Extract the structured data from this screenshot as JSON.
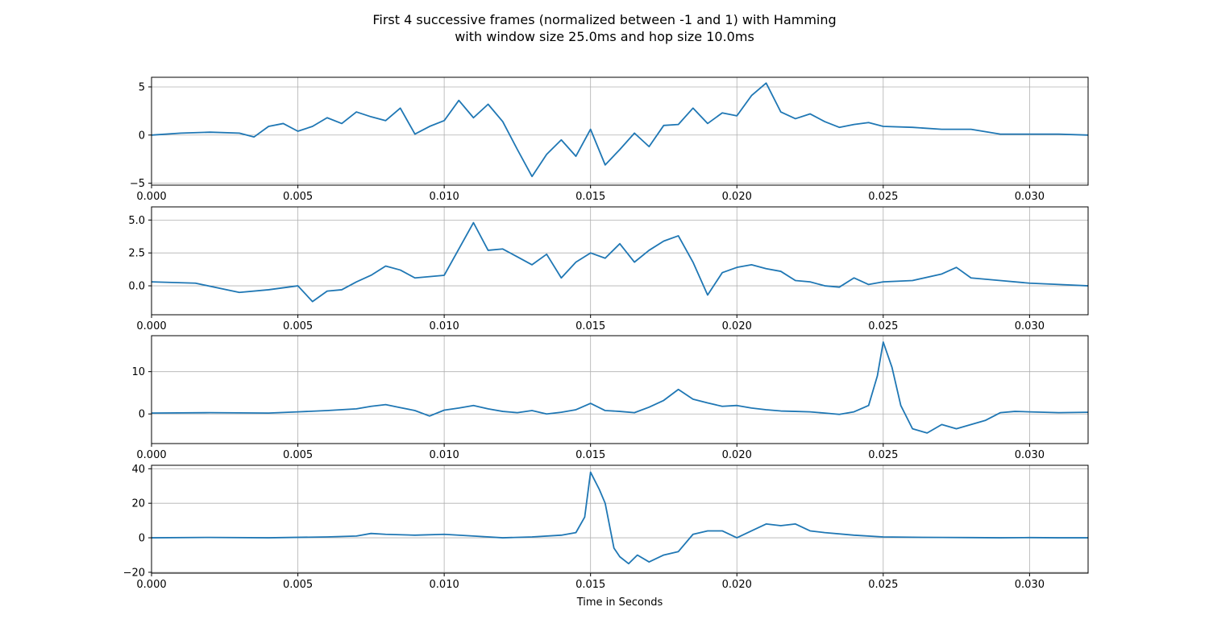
{
  "figure": {
    "title_line1": "First 4 successive frames (normalized between -1 and 1) with Hamming",
    "title_line2": "with window size 25.0ms and hop size 10.0ms",
    "series_color": "#1f77b4",
    "grid_color": "#b0b0b0"
  },
  "chart_data": [
    {
      "type": "line",
      "title": "",
      "xlabel": "",
      "ylabel": "",
      "grid": true,
      "xlim": [
        0,
        0.032
      ],
      "ylim": [
        -5.2,
        6.0
      ],
      "xticks": [
        0.0,
        0.005,
        0.01,
        0.015,
        0.02,
        0.025,
        0.03
      ],
      "xtick_labels": [
        "0.000",
        "0.005",
        "0.010",
        "0.015",
        "0.020",
        "0.025",
        "0.030"
      ],
      "yticks": [
        -5,
        0,
        5
      ],
      "ytick_labels": [
        "−5",
        "0",
        "5"
      ],
      "series": [
        {
          "x": [
            0.0,
            0.001,
            0.002,
            0.003,
            0.0035,
            0.004,
            0.0045,
            0.005,
            0.0055,
            0.006,
            0.0065,
            0.007,
            0.0075,
            0.008,
            0.0085,
            0.009,
            0.0095,
            0.01,
            0.0105,
            0.011,
            0.0115,
            0.012,
            0.0125,
            0.013,
            0.0135,
            0.014,
            0.0145,
            0.015,
            0.0155,
            0.016,
            0.0165,
            0.017,
            0.0175,
            0.018,
            0.0185,
            0.019,
            0.0195,
            0.02,
            0.0205,
            0.021,
            0.0215,
            0.022,
            0.0225,
            0.023,
            0.0235,
            0.024,
            0.0245,
            0.025,
            0.026,
            0.027,
            0.028,
            0.029,
            0.03,
            0.031,
            0.032
          ],
          "y": [
            0.0,
            0.2,
            0.3,
            0.2,
            -0.2,
            0.9,
            1.2,
            0.4,
            0.9,
            1.8,
            1.2,
            2.4,
            1.9,
            1.5,
            2.8,
            0.1,
            0.9,
            1.5,
            3.6,
            1.8,
            3.2,
            1.4,
            -1.5,
            -4.3,
            -2.0,
            -0.5,
            -2.2,
            0.6,
            -3.1,
            -1.5,
            0.2,
            -1.2,
            1.0,
            1.1,
            2.8,
            1.2,
            2.3,
            2.0,
            4.1,
            5.4,
            2.4,
            1.7,
            2.2,
            1.4,
            0.8,
            1.1,
            1.3,
            0.9,
            0.8,
            0.6,
            0.6,
            0.1,
            0.1,
            0.1,
            0.0
          ]
        }
      ]
    },
    {
      "type": "line",
      "title": "",
      "xlabel": "",
      "ylabel": "",
      "grid": true,
      "xlim": [
        0,
        0.032
      ],
      "ylim": [
        -2.2,
        6.0
      ],
      "xticks": [
        0.0,
        0.005,
        0.01,
        0.015,
        0.02,
        0.025,
        0.03
      ],
      "xtick_labels": [
        "0.000",
        "0.005",
        "0.010",
        "0.015",
        "0.020",
        "0.025",
        "0.030"
      ],
      "yticks": [
        0.0,
        2.5,
        5.0
      ],
      "ytick_labels": [
        "0.0",
        "2.5",
        "5.0"
      ],
      "series": [
        {
          "x": [
            0.0,
            0.0015,
            0.003,
            0.004,
            0.005,
            0.0055,
            0.006,
            0.0065,
            0.007,
            0.0075,
            0.008,
            0.0085,
            0.009,
            0.0095,
            0.01,
            0.0105,
            0.011,
            0.0115,
            0.012,
            0.0125,
            0.013,
            0.0135,
            0.014,
            0.0145,
            0.015,
            0.0155,
            0.016,
            0.0165,
            0.017,
            0.0175,
            0.018,
            0.0185,
            0.019,
            0.0195,
            0.02,
            0.0205,
            0.021,
            0.0215,
            0.022,
            0.0225,
            0.023,
            0.0235,
            0.024,
            0.0245,
            0.025,
            0.026,
            0.027,
            0.0275,
            0.028,
            0.029,
            0.03,
            0.031,
            0.032
          ],
          "y": [
            0.3,
            0.2,
            -0.5,
            -0.3,
            0.0,
            -1.2,
            -0.4,
            -0.3,
            0.3,
            0.8,
            1.5,
            1.2,
            0.6,
            0.7,
            0.8,
            2.8,
            4.8,
            2.7,
            2.8,
            2.2,
            1.6,
            2.4,
            0.6,
            1.8,
            2.5,
            2.1,
            3.2,
            1.8,
            2.7,
            3.4,
            3.8,
            1.8,
            -0.7,
            1.0,
            1.4,
            1.6,
            1.3,
            1.1,
            0.4,
            0.3,
            0.0,
            -0.1,
            0.6,
            0.1,
            0.3,
            0.4,
            0.9,
            1.4,
            0.6,
            0.4,
            0.2,
            0.1,
            0.0
          ]
        }
      ]
    },
    {
      "type": "line",
      "title": "",
      "xlabel": "",
      "ylabel": "",
      "grid": true,
      "xlim": [
        0,
        0.032
      ],
      "ylim": [
        -7.0,
        18.5
      ],
      "xticks": [
        0.0,
        0.005,
        0.01,
        0.015,
        0.02,
        0.025,
        0.03
      ],
      "xtick_labels": [
        "0.000",
        "0.005",
        "0.010",
        "0.015",
        "0.020",
        "0.025",
        "0.030"
      ],
      "yticks": [
        0,
        10
      ],
      "ytick_labels": [
        "0",
        "10"
      ],
      "series": [
        {
          "x": [
            0.0,
            0.002,
            0.004,
            0.005,
            0.006,
            0.007,
            0.0075,
            0.008,
            0.0085,
            0.009,
            0.0095,
            0.01,
            0.0105,
            0.011,
            0.0115,
            0.012,
            0.0125,
            0.013,
            0.0135,
            0.014,
            0.0145,
            0.015,
            0.0155,
            0.016,
            0.0165,
            0.017,
            0.0175,
            0.018,
            0.0185,
            0.019,
            0.0195,
            0.02,
            0.0205,
            0.021,
            0.0215,
            0.022,
            0.0225,
            0.023,
            0.0235,
            0.024,
            0.0245,
            0.0248,
            0.025,
            0.0253,
            0.0256,
            0.026,
            0.0265,
            0.027,
            0.0275,
            0.028,
            0.0285,
            0.029,
            0.0295,
            0.03,
            0.031,
            0.032
          ],
          "y": [
            0.2,
            0.3,
            0.2,
            0.5,
            0.8,
            1.2,
            1.8,
            2.2,
            1.5,
            0.8,
            -0.5,
            0.9,
            1.4,
            2.0,
            1.2,
            0.6,
            0.3,
            0.8,
            0.0,
            0.4,
            1.0,
            2.5,
            0.8,
            0.6,
            0.3,
            1.6,
            3.2,
            5.8,
            3.5,
            2.6,
            1.8,
            2.0,
            1.4,
            1.0,
            0.7,
            0.6,
            0.5,
            0.2,
            -0.1,
            0.5,
            2.0,
            9.0,
            17.0,
            11.0,
            2.0,
            -3.5,
            -4.5,
            -2.5,
            -3.5,
            -2.5,
            -1.5,
            0.3,
            0.6,
            0.5,
            0.3,
            0.4
          ]
        }
      ]
    },
    {
      "type": "line",
      "title": "",
      "xlabel": "Time in Seconds",
      "ylabel": "",
      "grid": true,
      "xlim": [
        0,
        0.032
      ],
      "ylim": [
        -20.5,
        42.0
      ],
      "xticks": [
        0.0,
        0.005,
        0.01,
        0.015,
        0.02,
        0.025,
        0.03
      ],
      "xtick_labels": [
        "0.000",
        "0.005",
        "0.010",
        "0.015",
        "0.020",
        "0.025",
        "0.030"
      ],
      "yticks": [
        -20,
        0,
        20,
        40
      ],
      "ytick_labels": [
        "−20",
        "0",
        "20",
        "40"
      ],
      "series": [
        {
          "x": [
            0.0,
            0.002,
            0.004,
            0.006,
            0.007,
            0.0075,
            0.008,
            0.009,
            0.01,
            0.011,
            0.012,
            0.013,
            0.014,
            0.0145,
            0.0148,
            0.015,
            0.0153,
            0.0155,
            0.0158,
            0.016,
            0.0163,
            0.0166,
            0.017,
            0.0175,
            0.018,
            0.0185,
            0.019,
            0.0195,
            0.02,
            0.0205,
            0.021,
            0.0215,
            0.022,
            0.0225,
            0.023,
            0.024,
            0.025,
            0.026,
            0.027,
            0.028,
            0.029,
            0.03,
            0.031,
            0.032
          ],
          "y": [
            0.0,
            0.2,
            0.0,
            0.5,
            1.0,
            2.5,
            2.0,
            1.5,
            2.0,
            1.0,
            0.0,
            0.5,
            1.5,
            3.0,
            12.0,
            38.0,
            28.0,
            20.0,
            -6.0,
            -11.0,
            -15.0,
            -10.0,
            -14.0,
            -10.0,
            -8.0,
            2.0,
            4.0,
            4.0,
            0.0,
            4.0,
            8.0,
            7.0,
            8.0,
            4.0,
            3.0,
            1.5,
            0.5,
            0.3,
            0.2,
            0.1,
            0.0,
            0.1,
            0.0,
            0.0
          ]
        }
      ]
    }
  ]
}
